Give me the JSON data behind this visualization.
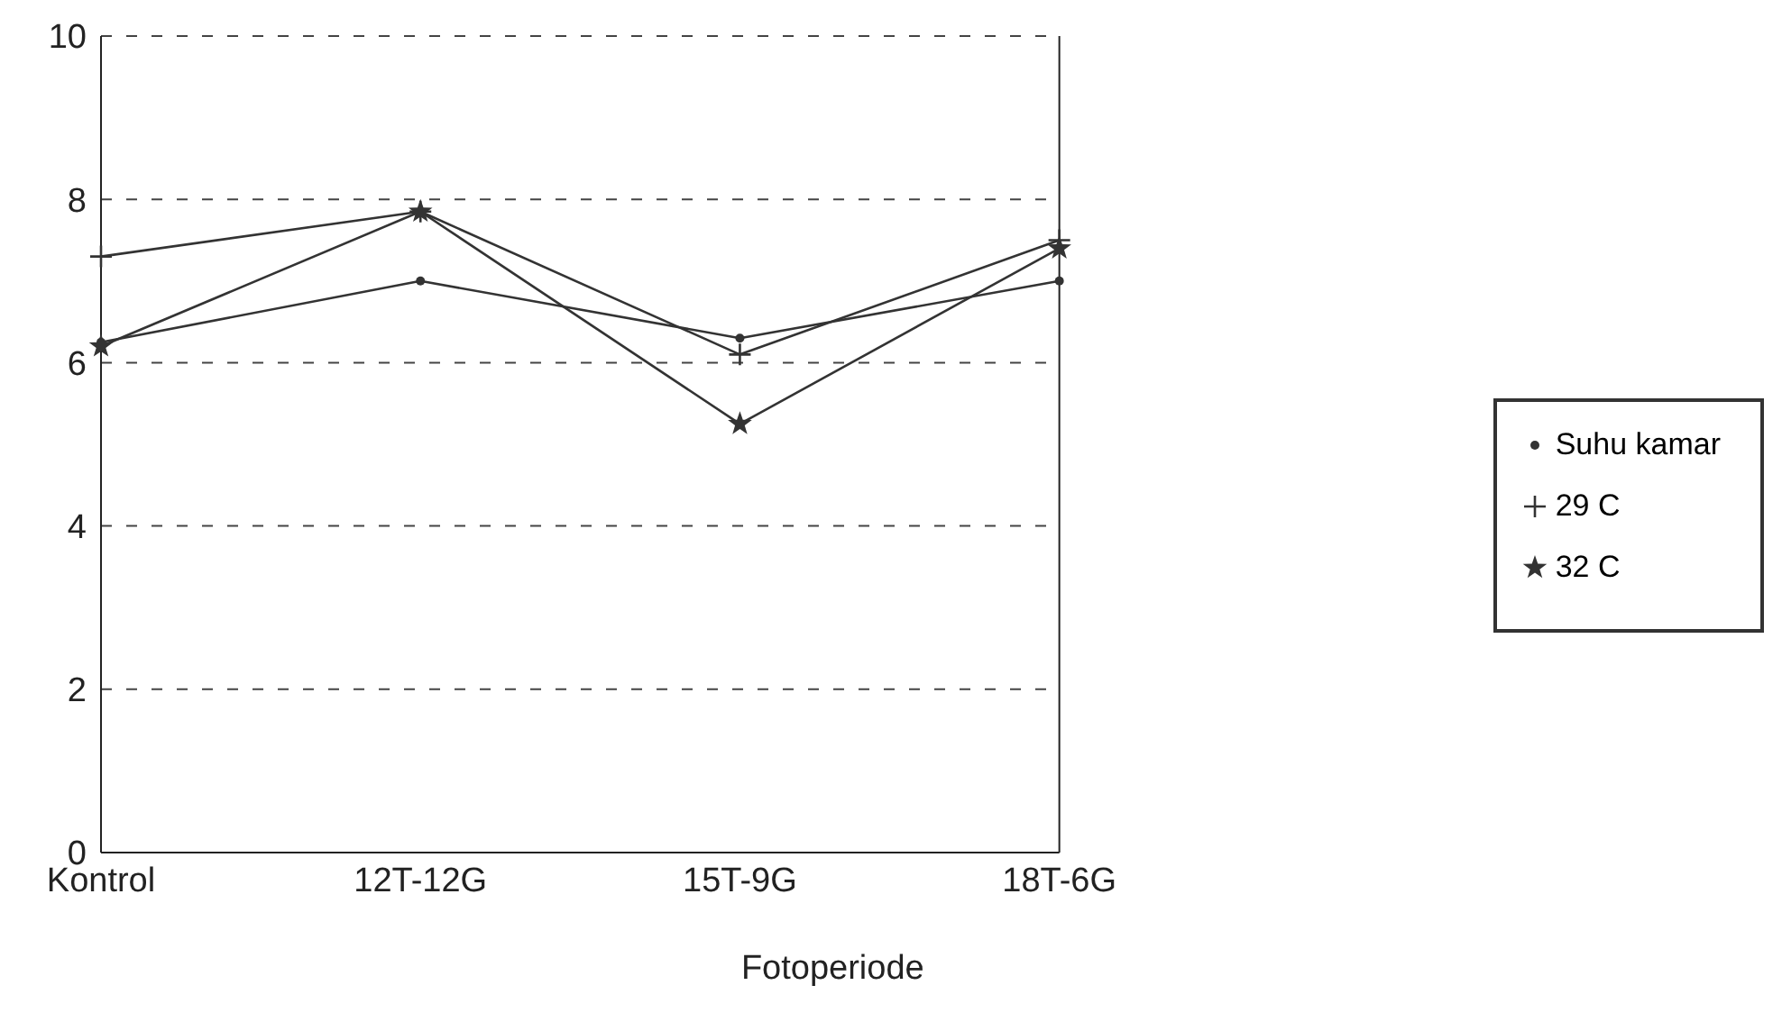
{
  "chart_data": {
    "type": "line",
    "xlabel": "Fotoperiode",
    "categories": [
      "Kontrol",
      "12T-12G",
      "15T-9G",
      "18T-6G"
    ],
    "series": [
      {
        "name": "Suhu kamar",
        "color": "#333333",
        "marker": "circle",
        "values": [
          6.25,
          7.0,
          6.3,
          7.0
        ]
      },
      {
        "name": "29 C",
        "color": "#333333",
        "marker": "cross",
        "values": [
          7.3,
          7.85,
          6.1,
          7.5
        ]
      },
      {
        "name": "32 C",
        "color": "#333333",
        "marker": "star",
        "values": [
          6.2,
          7.85,
          5.25,
          7.4
        ]
      }
    ],
    "ylim": [
      0,
      10
    ],
    "yticks": [
      0,
      2,
      4,
      6,
      8,
      10
    ],
    "grid": "y",
    "legend": "right"
  }
}
